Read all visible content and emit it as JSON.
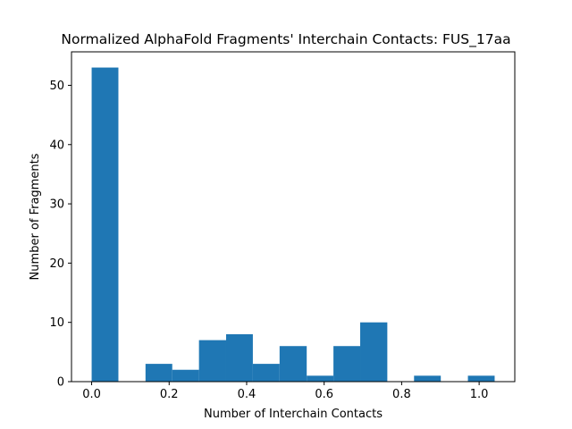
{
  "chart_data": {
    "type": "bar",
    "title": "Normalized AlphaFold Fragments' Interchain Contacts: FUS_17aa",
    "xlabel": "Number of Interchain Contacts",
    "ylabel": "Number of Fragments",
    "xlim": [
      -0.052,
      1.092
    ],
    "ylim": [
      0,
      55.65
    ],
    "xticks": [
      0.0,
      0.2,
      0.4,
      0.6,
      0.8,
      1.0
    ],
    "xtick_labels": [
      "0.0",
      "0.2",
      "0.4",
      "0.6",
      "0.8",
      "1.0"
    ],
    "yticks": [
      0,
      10,
      20,
      30,
      40,
      50
    ],
    "ytick_labels": [
      "0",
      "10",
      "20",
      "30",
      "40",
      "50"
    ],
    "bin_edges": [
      0.0,
      0.069,
      0.139,
      0.208,
      0.277,
      0.347,
      0.416,
      0.485,
      0.555,
      0.624,
      0.693,
      0.763,
      0.832,
      0.901,
      0.971,
      1.04
    ],
    "values": [
      53,
      0,
      3,
      2,
      7,
      8,
      3,
      6,
      1,
      6,
      10,
      0,
      1,
      0,
      1
    ],
    "color": "#1f77b4",
    "grid": false,
    "legend": "none"
  }
}
